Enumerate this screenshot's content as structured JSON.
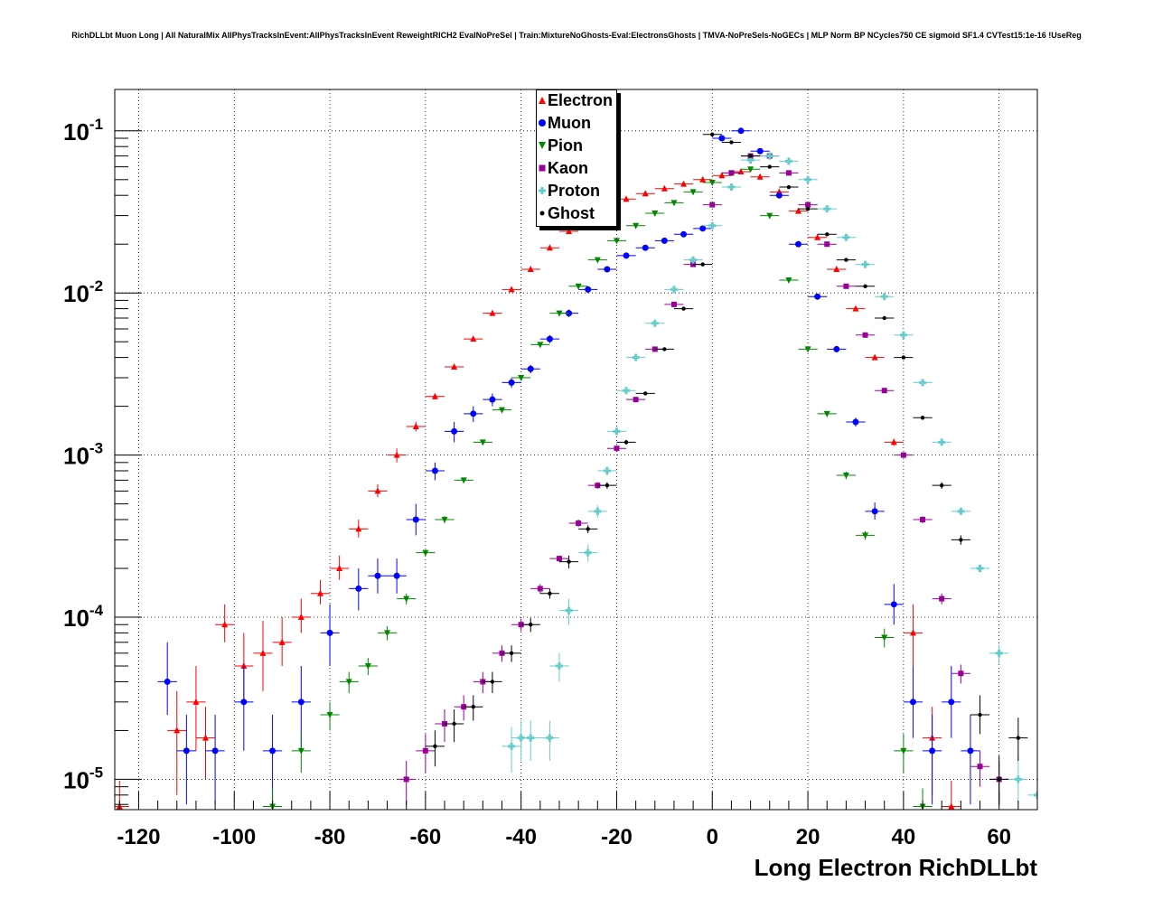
{
  "title": "RichDLLbt Muon Long | All NaturalMix AllPhysTracksInEvent:AllPhysTracksInEvent ReweightRICH2 EvalNoPreSel | Train:MixtureNoGhosts-Eval:ElectronsGhosts | TMVA-NoPreSels-NoGECs | MLP Norm BP NCycles750 CE sigmoid SF1.4 CVTest15:1e-16 !UseReg",
  "chart_data": {
    "type": "scatter",
    "title": "RichDLLbt Muon Long | All NaturalMix AllPhysTracksInEvent:AllPhysTracksInEvent ReweightRICH2 EvalNoPreSel | Train:MixtureNoGhosts-Eval:ElectronsGhosts | TMVA-NoPreSels-NoGECs | MLP Norm BP NCycles750 CE sigmoid SF1.4 CVTest15:1e-16 !UseReg",
    "xlabel": "Long Electron RichDLLbt",
    "ylabel": "",
    "xlim": [
      -125,
      68
    ],
    "ylim": [
      6.5e-06,
      0.18
    ],
    "yscale": "log",
    "grid": true,
    "legend_position": "top-center",
    "x_ticks": [
      -120,
      -100,
      -80,
      -60,
      -40,
      -20,
      0,
      20,
      40,
      60
    ],
    "x_tick_labels": [
      "-120",
      "-100",
      "-80",
      "-60",
      "-40",
      "-20",
      "0",
      "20",
      "40",
      "60"
    ],
    "y_ticks": [
      1e-05,
      0.0001,
      0.001,
      0.01,
      0.1
    ],
    "y_tick_labels": [
      {
        "base": "10",
        "exp": "-5"
      },
      {
        "base": "10",
        "exp": "-4"
      },
      {
        "base": "10",
        "exp": "-3"
      },
      {
        "base": "10",
        "exp": "-2"
      },
      {
        "base": "10",
        "exp": "-1"
      }
    ],
    "series": [
      {
        "name": "Electron",
        "color": "#ff0000",
        "marker": "triangle-up",
        "bin_error_width": 2,
        "x": [
          -124,
          -112,
          -108,
          -106,
          -102,
          -98,
          -94,
          -90,
          -86,
          -82,
          -78,
          -74,
          -70,
          -66,
          -62,
          -58,
          -54,
          -50,
          -46,
          -42,
          -38,
          -34,
          -30,
          -26,
          -22,
          -18,
          -14,
          -10,
          -6,
          -2,
          2,
          6,
          10,
          14,
          18,
          22,
          26,
          30,
          34,
          38,
          42,
          46,
          50
        ],
        "y": [
          6.8e-06,
          2e-05,
          3e-05,
          1.8e-05,
          9e-05,
          5e-05,
          6e-05,
          7e-05,
          0.0001,
          0.00014,
          0.0002,
          0.00035,
          0.0006,
          0.001,
          0.0015,
          0.0023,
          0.0035,
          0.0052,
          0.0075,
          0.0105,
          0.014,
          0.019,
          0.024,
          0.029,
          0.034,
          0.038,
          0.041,
          0.044,
          0.047,
          0.05,
          0.053,
          0.056,
          0.052,
          0.042,
          0.032,
          0.022,
          0.014,
          0.008,
          0.004,
          0.0012,
          8e-05,
          1.8e-05,
          6.8e-06
        ],
        "err_lo": [
          2e-06,
          1.2e-05,
          1.5e-05,
          8e-06,
          2e-05,
          2e-05,
          2.5e-05,
          2e-05,
          2e-05,
          2e-05,
          3e-05,
          4e-05,
          5e-05,
          0.0001,
          0.0001,
          0.0001,
          0.0001,
          0.0001,
          0.0001,
          0.0002,
          0.0002,
          0.0002,
          0.0003,
          0.0003,
          0.0004,
          0.0004,
          0.0004,
          0.0004,
          0.0004,
          0.0004,
          0.0005,
          0.0005,
          0.0005,
          0.0004,
          0.0003,
          0.0003,
          0.0002,
          0.0001,
          0.0001,
          6e-05,
          3e-05,
          1e-05,
          2e-06
        ],
        "err_hi": [
          3e-06,
          1.5e-05,
          2e-05,
          1e-05,
          3e-05,
          3e-05,
          3.5e-05,
          3e-05,
          3e-05,
          3e-05,
          4e-05,
          5e-05,
          6e-05,
          0.0001,
          0.0001,
          0.0001,
          0.0001,
          0.0001,
          0.0001,
          0.0002,
          0.0002,
          0.0002,
          0.0003,
          0.0003,
          0.0004,
          0.0004,
          0.0004,
          0.0004,
          0.0004,
          0.0004,
          0.0005,
          0.0005,
          0.0005,
          0.0004,
          0.0003,
          0.0003,
          0.0002,
          0.0001,
          0.0001,
          6e-05,
          4e-05,
          1e-05,
          3e-06
        ]
      },
      {
        "name": "Muon",
        "color": "#0000ff",
        "marker": "circle",
        "bin_error_width": 2,
        "x": [
          -114,
          -110,
          -104,
          -98,
          -92,
          -86,
          -80,
          -74,
          -70,
          -66,
          -62,
          -58,
          -54,
          -50,
          -46,
          -42,
          -38,
          -34,
          -30,
          -26,
          -22,
          -18,
          -14,
          -10,
          -6,
          -2,
          2,
          6,
          10,
          14,
          18,
          22,
          26,
          30,
          34,
          38,
          42,
          46,
          50,
          54
        ],
        "y": [
          4e-05,
          1.5e-05,
          1.5e-05,
          3e-05,
          1.5e-05,
          3e-05,
          8e-05,
          0.00015,
          0.00018,
          0.00018,
          0.0004,
          0.0008,
          0.0014,
          0.0018,
          0.0022,
          0.0028,
          0.0034,
          0.0052,
          0.0075,
          0.0105,
          0.014,
          0.017,
          0.019,
          0.021,
          0.023,
          0.025,
          0.09,
          0.1,
          0.075,
          0.04,
          0.02,
          0.0095,
          0.0045,
          0.0016,
          0.00045,
          0.00012,
          3e-05,
          1.5e-05,
          3e-05,
          1.5e-05
        ],
        "err_lo": [
          1.5e-05,
          8e-06,
          8e-06,
          1.5e-05,
          8e-06,
          1.5e-05,
          3e-05,
          4e-05,
          4e-05,
          4e-05,
          8e-05,
          0.0001,
          0.0002,
          0.0002,
          0.0002,
          0.0002,
          0.0002,
          0.0003,
          0.0004,
          0.0005,
          0.0006,
          0.0006,
          0.0006,
          0.0007,
          0.0007,
          0.0008,
          0.002,
          0.002,
          0.002,
          0.001,
          0.0006,
          0.0004,
          0.0002,
          0.0001,
          5e-05,
          3e-05,
          1.2e-05,
          8e-06,
          1.2e-05,
          8e-06
        ],
        "err_hi": [
          3e-05,
          1e-05,
          1e-05,
          2e-05,
          1e-05,
          2e-05,
          4e-05,
          5e-05,
          5e-05,
          5e-05,
          0.0001,
          0.0001,
          0.0002,
          0.0002,
          0.0002,
          0.0002,
          0.0002,
          0.0003,
          0.0004,
          0.0005,
          0.0006,
          0.0006,
          0.0006,
          0.0007,
          0.0007,
          0.0008,
          0.002,
          0.002,
          0.002,
          0.001,
          0.0006,
          0.0004,
          0.0002,
          0.0001,
          6e-05,
          4e-05,
          2e-05,
          1e-05,
          2e-05,
          1e-05
        ]
      },
      {
        "name": "Pion",
        "color": "#008800",
        "marker": "triangle-down",
        "bin_error_width": 2,
        "x": [
          -92,
          -86,
          -80,
          -76,
          -72,
          -68,
          -64,
          -60,
          -56,
          -52,
          -48,
          -44,
          -40,
          -36,
          -32,
          -28,
          -24,
          -20,
          -16,
          -12,
          -8,
          -4,
          0,
          4,
          8,
          12,
          16,
          20,
          24,
          28,
          32,
          36,
          40,
          44
        ],
        "y": [
          6.8e-06,
          1.5e-05,
          2.5e-05,
          4e-05,
          5e-05,
          8e-05,
          0.00013,
          0.00025,
          0.0004,
          0.0007,
          0.0012,
          0.0019,
          0.003,
          0.0048,
          0.0075,
          0.011,
          0.016,
          0.021,
          0.026,
          0.031,
          0.036,
          0.042,
          0.048,
          0.055,
          0.058,
          0.03,
          0.012,
          0.0045,
          0.0018,
          0.00075,
          0.00032,
          7.5e-05,
          1.5e-05,
          6.8e-06
        ],
        "err_lo": [
          2e-06,
          4e-06,
          5e-06,
          6e-06,
          6e-06,
          8e-06,
          1e-05,
          1e-05,
          2e-05,
          2e-05,
          3e-05,
          4e-05,
          5e-05,
          7e-05,
          0.0001,
          0.0001,
          0.0002,
          0.0002,
          0.0002,
          0.0003,
          0.0003,
          0.0003,
          0.0004,
          0.0004,
          0.0004,
          0.0003,
          0.0002,
          0.0001,
          6e-05,
          4e-05,
          2e-05,
          1e-05,
          4e-06,
          2e-06
        ],
        "err_hi": [
          2e-06,
          4e-06,
          5e-06,
          6e-06,
          6e-06,
          8e-06,
          1e-05,
          1e-05,
          2e-05,
          2e-05,
          3e-05,
          4e-05,
          5e-05,
          7e-05,
          0.0001,
          0.0001,
          0.0002,
          0.0002,
          0.0002,
          0.0003,
          0.0003,
          0.0003,
          0.0004,
          0.0004,
          0.0004,
          0.0003,
          0.0002,
          0.0001,
          6e-05,
          4e-05,
          2e-05,
          1e-05,
          4e-06,
          2e-06
        ]
      },
      {
        "name": "Kaon",
        "color": "#990099",
        "marker": "square",
        "bin_error_width": 2,
        "x": [
          -64,
          -60,
          -56,
          -52,
          -48,
          -44,
          -40,
          -36,
          -32,
          -28,
          -24,
          -20,
          -16,
          -12,
          -8,
          -4,
          0,
          4,
          8,
          12,
          16,
          20,
          24,
          28,
          32,
          36,
          40,
          44,
          48,
          52,
          56,
          60
        ],
        "y": [
          1e-05,
          1.5e-05,
          2.2e-05,
          2.8e-05,
          4e-05,
          6e-05,
          9e-05,
          0.00015,
          0.00023,
          0.00038,
          0.00065,
          0.0011,
          0.0022,
          0.0045,
          0.0085,
          0.015,
          0.035,
          0.055,
          0.07,
          0.07,
          0.055,
          0.035,
          0.02,
          0.011,
          0.0055,
          0.0025,
          0.001,
          0.0004,
          0.00013,
          4.5e-05,
          1.2e-05,
          1e-05
        ],
        "err_lo": [
          3e-06,
          4e-06,
          5e-06,
          5e-06,
          6e-06,
          7e-06,
          8e-06,
          1e-05,
          1e-05,
          2e-05,
          3e-05,
          4e-05,
          5e-05,
          0.0001,
          0.0001,
          0.0002,
          0.0003,
          0.0004,
          0.0004,
          0.0004,
          0.0004,
          0.0003,
          0.0002,
          0.0001,
          0.0001,
          5e-05,
          3e-05,
          2e-05,
          1e-05,
          6e-06,
          3e-06,
          3e-06
        ],
        "err_hi": [
          3e-06,
          4e-06,
          5e-06,
          5e-06,
          6e-06,
          7e-06,
          8e-06,
          1e-05,
          1e-05,
          2e-05,
          3e-05,
          4e-05,
          5e-05,
          0.0001,
          0.0001,
          0.0002,
          0.0003,
          0.0004,
          0.0004,
          0.0004,
          0.0004,
          0.0003,
          0.0002,
          0.0001,
          0.0001,
          5e-05,
          3e-05,
          2e-05,
          1e-05,
          6e-06,
          3e-06,
          3e-06
        ]
      },
      {
        "name": "Proton",
        "color": "#66cccc",
        "marker": "cross",
        "bin_error_width": 2,
        "x": [
          -42,
          -40,
          -38,
          -34,
          -32,
          -30,
          -26,
          -24,
          -22,
          -20,
          -18,
          -16,
          -12,
          -8,
          -4,
          0,
          4,
          8,
          12,
          16,
          20,
          24,
          28,
          32,
          36,
          40,
          44,
          48,
          52,
          56,
          60,
          64,
          68
        ],
        "y": [
          1.6e-05,
          1.8e-05,
          1.8e-05,
          1.8e-05,
          5e-05,
          0.00011,
          0.00025,
          0.00045,
          0.0008,
          0.0014,
          0.0025,
          0.004,
          0.0065,
          0.0105,
          0.016,
          0.026,
          0.045,
          0.066,
          0.07,
          0.065,
          0.05,
          0.033,
          0.022,
          0.015,
          0.0095,
          0.0055,
          0.0028,
          0.0012,
          0.00045,
          0.0002,
          6e-05,
          1e-05,
          8e-06
        ],
        "err_lo": [
          5e-06,
          5e-06,
          5e-06,
          5e-06,
          1e-05,
          2e-05,
          3e-05,
          4e-05,
          5e-05,
          7e-05,
          0.0001,
          0.0001,
          0.0002,
          0.0002,
          0.0003,
          0.0004,
          0.0005,
          0.0005,
          0.0005,
          0.0005,
          0.0004,
          0.0003,
          0.0002,
          0.0002,
          0.0001,
          0.0001,
          7e-05,
          4e-05,
          2e-05,
          1e-05,
          8e-06,
          3e-06,
          2e-06
        ],
        "err_hi": [
          5e-06,
          5e-06,
          5e-06,
          5e-06,
          1e-05,
          2e-05,
          3e-05,
          4e-05,
          5e-05,
          7e-05,
          0.0001,
          0.0001,
          0.0002,
          0.0002,
          0.0003,
          0.0004,
          0.0005,
          0.0005,
          0.0005,
          0.0005,
          0.0004,
          0.0003,
          0.0002,
          0.0002,
          0.0001,
          0.0001,
          7e-05,
          4e-05,
          2e-05,
          1e-05,
          8e-06,
          4e-06,
          3e-06
        ]
      },
      {
        "name": "Ghost",
        "color": "#000000",
        "marker": "circle-small",
        "bin_error_width": 2,
        "x": [
          -58,
          -54,
          -50,
          -46,
          -42,
          -38,
          -34,
          -30,
          -26,
          -22,
          -18,
          -14,
          -10,
          -6,
          -2,
          0,
          4,
          8,
          12,
          16,
          20,
          24,
          28,
          32,
          36,
          40,
          44,
          48,
          52,
          56,
          60,
          64
        ],
        "y": [
          1.6e-05,
          2.2e-05,
          2.8e-05,
          4e-05,
          6e-05,
          9e-05,
          0.00014,
          0.00022,
          0.00035,
          0.00065,
          0.0012,
          0.0024,
          0.0045,
          0.008,
          0.015,
          0.095,
          0.085,
          0.07,
          0.06,
          0.045,
          0.033,
          0.023,
          0.016,
          0.011,
          0.007,
          0.004,
          0.0017,
          0.00065,
          0.0003,
          2.5e-05,
          1e-05,
          1.8e-05
        ],
        "err_lo": [
          4e-06,
          5e-06,
          5e-06,
          6e-06,
          7e-06,
          9e-06,
          1e-05,
          2e-05,
          2e-05,
          3e-05,
          4e-05,
          6e-05,
          8e-05,
          0.0001,
          0.0002,
          0.0005,
          0.0005,
          0.0004,
          0.0004,
          0.0003,
          0.0003,
          0.0002,
          0.0002,
          0.0001,
          0.0001,
          8e-05,
          5e-05,
          3e-05,
          2e-05,
          6e-06,
          3e-06,
          5e-06
        ],
        "err_hi": [
          4e-06,
          5e-06,
          5e-06,
          6e-06,
          7e-06,
          9e-06,
          1e-05,
          2e-05,
          2e-05,
          3e-05,
          4e-05,
          6e-05,
          8e-05,
          0.0001,
          0.0002,
          0.0005,
          0.0005,
          0.0004,
          0.0004,
          0.0003,
          0.0003,
          0.0002,
          0.0002,
          0.0001,
          0.0001,
          8e-05,
          5e-05,
          3e-05,
          2e-05,
          8e-06,
          4e-06,
          6e-06
        ]
      }
    ]
  }
}
